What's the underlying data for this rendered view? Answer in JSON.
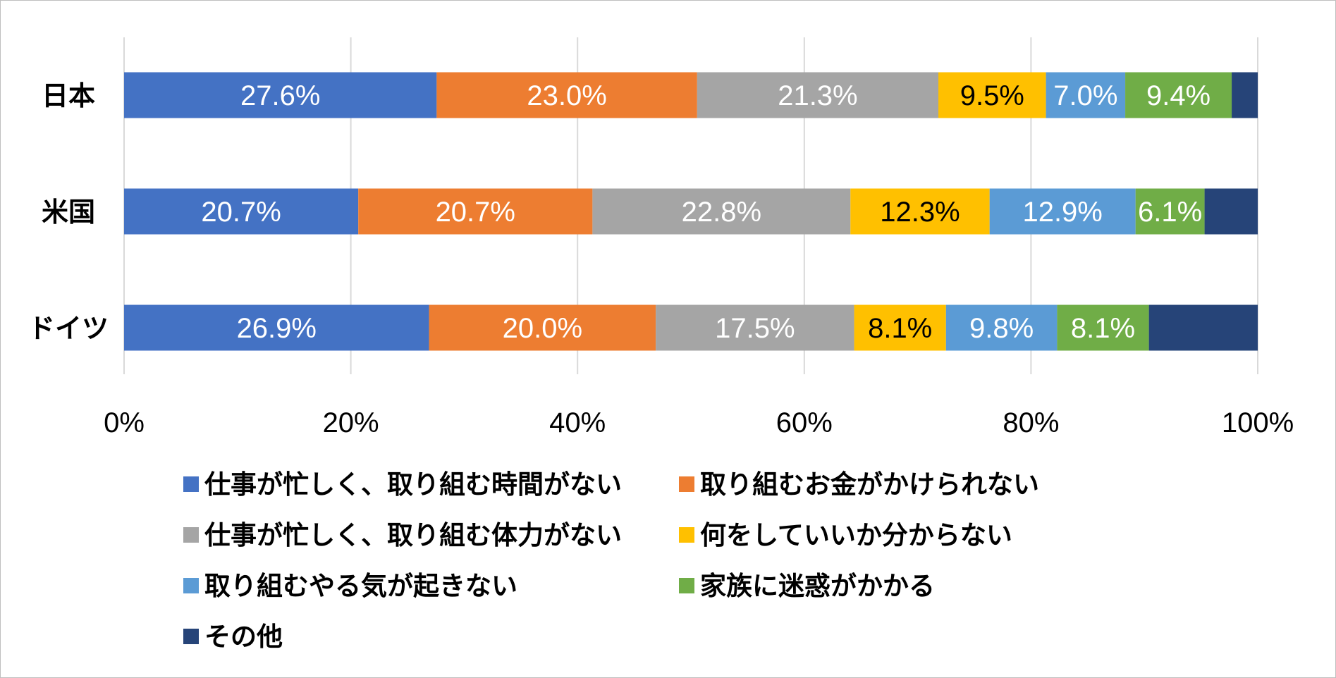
{
  "chart_data": {
    "type": "bar",
    "orientation": "horizontal",
    "stacked": "percent",
    "categories": [
      "日本",
      "米国",
      "ドイツ"
    ],
    "x_ticks": [
      "0%",
      "20%",
      "40%",
      "60%",
      "80%",
      "100%"
    ],
    "xlim": [
      0,
      100
    ],
    "grid": true,
    "legend_position": "bottom",
    "series": [
      {
        "name": "仕事が忙しく、取り組む時間がない",
        "color": "#4472c4",
        "label_color": "#ffffff",
        "values": [
          27.6,
          20.7,
          26.9
        ],
        "labels": [
          "27.6%",
          "20.7%",
          "26.9%"
        ]
      },
      {
        "name": "取り組むお金がかけられない",
        "color": "#ed7d31",
        "label_color": "#ffffff",
        "values": [
          23.0,
          20.7,
          20.0
        ],
        "labels": [
          "23.0%",
          "20.7%",
          "20.0%"
        ]
      },
      {
        "name": "仕事が忙しく、取り組む体力がない",
        "color": "#a5a5a5",
        "label_color": "#ffffff",
        "values": [
          21.3,
          22.8,
          17.5
        ],
        "labels": [
          "21.3%",
          "22.8%",
          "17.5%"
        ]
      },
      {
        "name": "何をしていいか分からない",
        "color": "#ffc000",
        "label_color": "#000000",
        "values": [
          9.5,
          12.3,
          8.1
        ],
        "labels": [
          "9.5%",
          "12.3%",
          "8.1%"
        ]
      },
      {
        "name": "取り組むやる気が起きない",
        "color": "#5b9bd5",
        "label_color": "#ffffff",
        "values": [
          7.0,
          12.9,
          9.8
        ],
        "labels": [
          "7.0%",
          "12.9%",
          "9.8%"
        ]
      },
      {
        "name": "家族に迷惑がかかる",
        "color": "#70ad47",
        "label_color": "#ffffff",
        "values": [
          9.4,
          6.1,
          8.1
        ],
        "labels": [
          "9.4%",
          "6.1%",
          "8.1%"
        ]
      },
      {
        "name": "その他",
        "color": "#264478",
        "label_color": "#ffffff",
        "values": [
          2.3,
          4.7,
          9.6
        ],
        "labels": [
          "",
          "",
          ""
        ]
      }
    ]
  }
}
